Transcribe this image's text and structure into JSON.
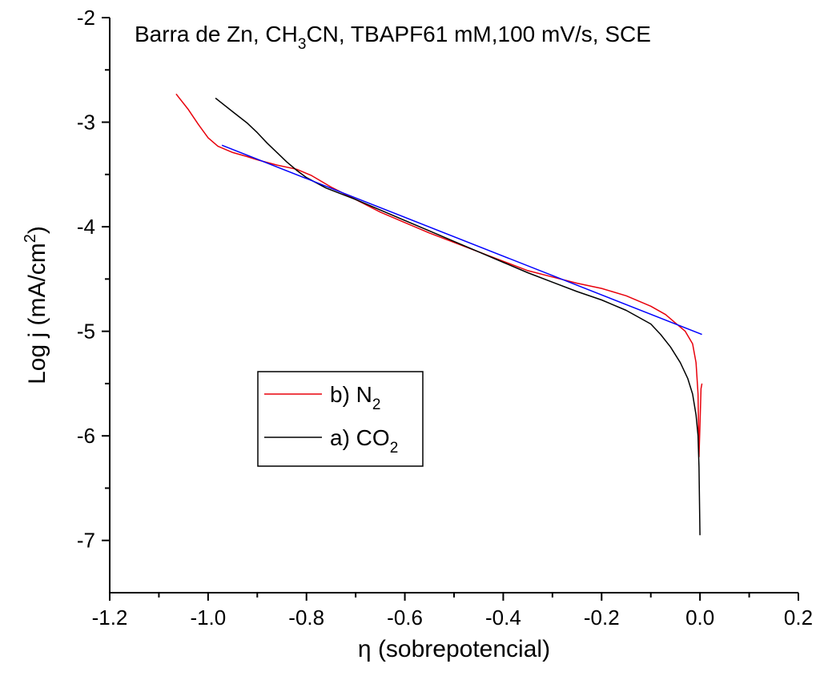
{
  "chart_data": {
    "type": "line",
    "title": "Barra de Zn, CH3CN, TBAPF61 mM,100 mV/s, SCE",
    "title_parts": {
      "a": "Barra de Zn, CH",
      "sub1": "3",
      "b": "CN, TBAPF61 mM,100 mV/s, SCE"
    },
    "xlabel": "η (sobrepotencial)",
    "ylabel": "Log j (mA/cm2)",
    "ylabel_parts": {
      "a": "Log j (mA/cm",
      "sup": "2",
      "b": ")"
    },
    "xlim": [
      -1.2,
      0.2
    ],
    "ylim": [
      -7.5,
      -2
    ],
    "x_ticks": [
      -1.2,
      -1.0,
      -0.8,
      -0.6,
      -0.4,
      -0.2,
      0.0,
      0.2
    ],
    "x_tick_labels": [
      "-1.2",
      "-1.0",
      "-0.8",
      "-0.6",
      "-0.4",
      "-0.2",
      "0.0",
      "0.2"
    ],
    "y_ticks": [
      -2,
      -3,
      -4,
      -5,
      -6,
      -7
    ],
    "y_tick_labels": [
      "-2",
      "-3",
      "-4",
      "-5",
      "-6",
      "-7"
    ],
    "grid": false,
    "legend_position": "center-left",
    "legend": [
      {
        "label": "b) N2",
        "main": "b) N",
        "sub": "2",
        "color": "#e8000b"
      },
      {
        "label": "a) CO2",
        "main": "a) CO",
        "sub": "2",
        "color": "#000000"
      }
    ],
    "series": [
      {
        "name": "b) N2",
        "color": "#e8000b",
        "x": [
          -1.065,
          -1.04,
          -1.02,
          -1.0,
          -0.98,
          -0.95,
          -0.92,
          -0.9,
          -0.86,
          -0.82,
          -0.79,
          -0.75,
          -0.7,
          -0.65,
          -0.6,
          -0.55,
          -0.5,
          -0.45,
          -0.4,
          -0.35,
          -0.3,
          -0.25,
          -0.2,
          -0.15,
          -0.1,
          -0.07,
          -0.05,
          -0.03,
          -0.015,
          -0.008,
          -0.004,
          -0.002,
          0.0,
          0.002,
          0.004
        ],
        "y": [
          -2.73,
          -2.88,
          -3.02,
          -3.15,
          -3.23,
          -3.29,
          -3.33,
          -3.36,
          -3.41,
          -3.45,
          -3.51,
          -3.62,
          -3.74,
          -3.86,
          -3.96,
          -4.06,
          -4.15,
          -4.24,
          -4.33,
          -4.42,
          -4.48,
          -4.54,
          -4.59,
          -4.66,
          -4.76,
          -4.84,
          -4.92,
          -5.0,
          -5.12,
          -5.3,
          -5.6,
          -6.2,
          -5.9,
          -5.55,
          -5.5
        ]
      },
      {
        "name": "a) CO2",
        "color": "#000000",
        "x": [
          -0.985,
          -0.95,
          -0.92,
          -0.9,
          -0.88,
          -0.86,
          -0.84,
          -0.82,
          -0.8,
          -0.76,
          -0.7,
          -0.65,
          -0.6,
          -0.55,
          -0.5,
          -0.45,
          -0.4,
          -0.35,
          -0.3,
          -0.25,
          -0.2,
          -0.15,
          -0.1,
          -0.08,
          -0.06,
          -0.04,
          -0.025,
          -0.015,
          -0.008,
          -0.004,
          -0.002,
          0.0
        ],
        "y": [
          -2.77,
          -2.9,
          -3.01,
          -3.1,
          -3.2,
          -3.29,
          -3.38,
          -3.46,
          -3.53,
          -3.63,
          -3.74,
          -3.84,
          -3.94,
          -4.04,
          -4.14,
          -4.24,
          -4.34,
          -4.44,
          -4.53,
          -4.62,
          -4.7,
          -4.8,
          -4.93,
          -5.03,
          -5.15,
          -5.3,
          -5.45,
          -5.6,
          -5.8,
          -6.0,
          -6.3,
          -6.95
        ]
      },
      {
        "name": "",
        "color": "#0000ff",
        "x": [
          -0.972,
          0.004
        ],
        "y": [
          -3.22,
          -5.03
        ]
      }
    ]
  }
}
